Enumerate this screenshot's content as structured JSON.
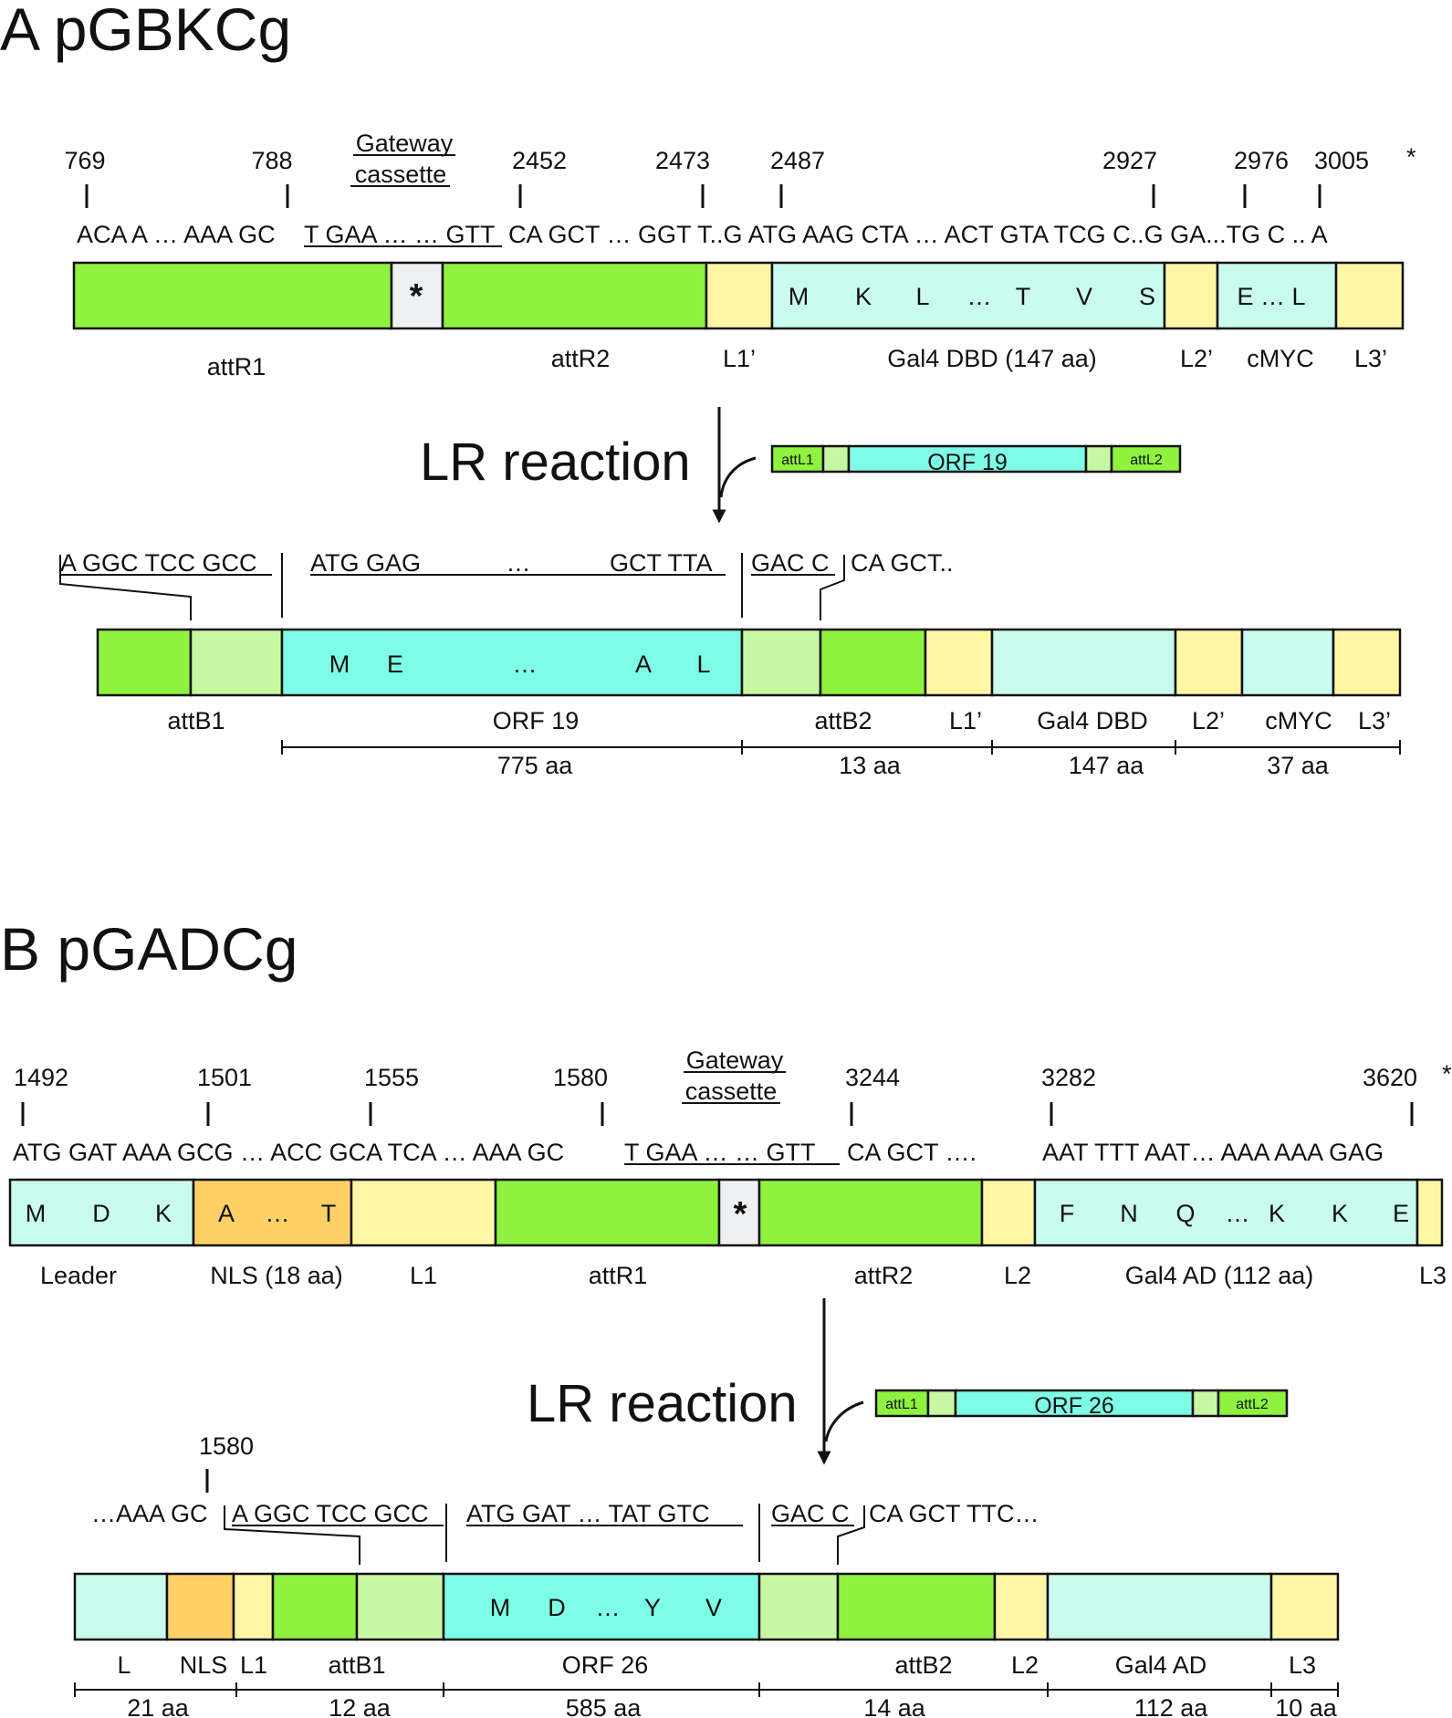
{
  "colors": {
    "att_green": "#8ef23f",
    "att_light_green": "#c8f7a3",
    "linker_yellow": "#fff7a6",
    "domain_cyan": "#c9fbee",
    "orf_cyan": "#7efde6",
    "nls_orange": "#ffd066",
    "cassette_grey": "#eef0f1"
  },
  "panel_a": {
    "title": "A pGBKCg",
    "positions": [
      "769",
      "788",
      "2452",
      "2473",
      "2487",
      "2927",
      "2976",
      "3005"
    ],
    "star": "*",
    "gateway_line1": "Gateway",
    "gateway_line2": "cassette",
    "seq_parts": [
      "ACA A … AAA GC",
      "T GAA … … GTT",
      "CA GCT … GGT T..G ATG AAG CTA … ACT GTA TCG C..G GA...TG C .. A"
    ],
    "cassette_symbol": "*",
    "residues_dbd": [
      "M",
      "K",
      "L",
      "…",
      "T",
      "V",
      "S"
    ],
    "residues_cmyc": "E … L",
    "segment_labels": [
      "attR1",
      "attR2",
      "L1’",
      "Gal4 DBD (147 aa)",
      "L2’",
      "cMYC",
      "L3’"
    ],
    "lr_label": "LR reaction",
    "insert": {
      "left": "attL1",
      "orf": "ORF 19",
      "right": "attL2"
    },
    "product_seq": [
      "A GGC TCC GCC",
      "ATG GAG",
      "…",
      "GCT TTA",
      "GAC C",
      "CA GCT.."
    ],
    "product_residues": [
      "M",
      "E",
      "…",
      "A",
      "L"
    ],
    "product_labels": [
      "attB1",
      "ORF 19",
      "attB2",
      "L1’",
      "Gal4 DBD",
      "L2’",
      "cMYC",
      "L3’"
    ],
    "lengths": [
      "775 aa",
      "13 aa",
      "147 aa",
      "37 aa"
    ]
  },
  "panel_b": {
    "title": "B pGADCg",
    "positions": [
      "1492",
      "1501",
      "1555",
      "1580",
      "3244",
      "3282",
      "3620"
    ],
    "star": "*",
    "gateway_line1": "Gateway",
    "gateway_line2": "cassette",
    "seq_parts": [
      "ATG GAT AAA GCG … ACC GCA TCA … AAA GC",
      "T GAA …   … GTT",
      "CA GCT ….",
      "AAT TTT AAT… AAA AAA GAG"
    ],
    "residues_leader": [
      "M",
      "D",
      "K"
    ],
    "residues_nls": [
      "A",
      "…",
      "T"
    ],
    "cassette_symbol": "*",
    "residues_ad": [
      "F",
      "N",
      "Q",
      "…",
      "K",
      "K",
      "E"
    ],
    "segment_labels": [
      "Leader",
      "NLS (18 aa)",
      "L1",
      "attR1",
      "attR2",
      "L2",
      "Gal4 AD (112 aa)",
      "L3"
    ],
    "lr_label": "LR reaction",
    "insert": {
      "left": "attL1",
      "orf": "ORF 26",
      "right": "attL2"
    },
    "product_position": "1580",
    "product_seq": [
      "…AAA GC",
      "A GGC TCC GCC",
      "ATG GAT  … TAT GTC",
      "GAC C",
      "CA GCT TTC…"
    ],
    "product_residues": [
      "M",
      "D",
      "…",
      "Y",
      "V"
    ],
    "product_labels": [
      "L",
      "NLS",
      "L1",
      "attB1",
      "ORF 26",
      "attB2",
      "L2",
      "Gal4 AD",
      "L3"
    ],
    "lengths": [
      "21 aa",
      "12 aa",
      "585 aa",
      "14 aa",
      "112 aa",
      "10 aa"
    ]
  }
}
